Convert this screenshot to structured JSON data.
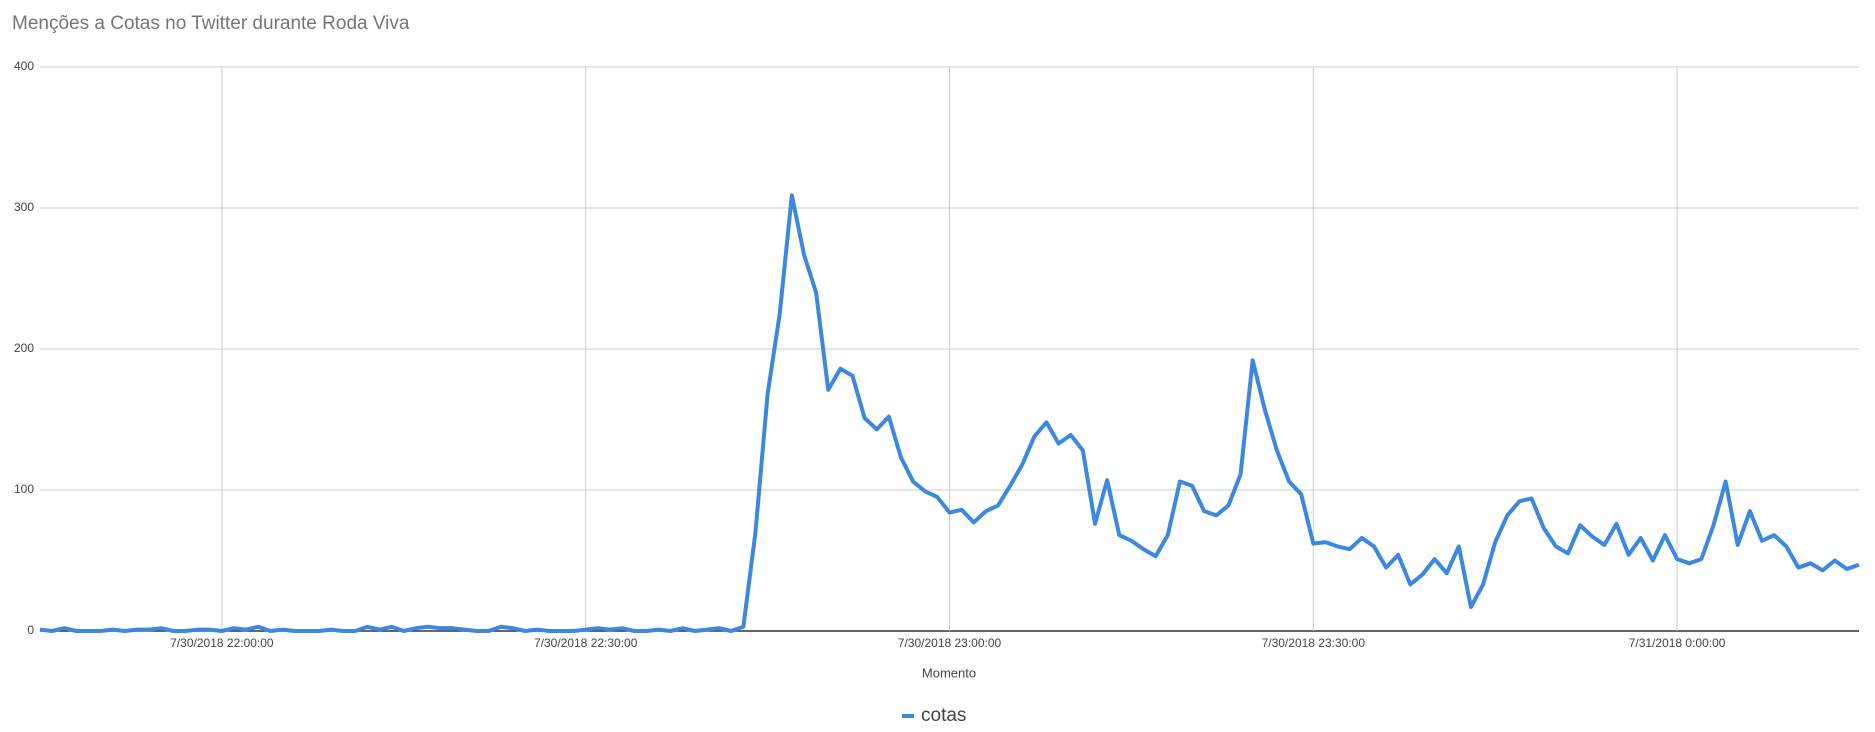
{
  "chart_data": {
    "type": "line",
    "title": "Menções a Cotas no Twitter durante Roda Viva",
    "x_label": "Momento",
    "x": [
      "7/30/2018 21:45:00",
      "7/30/2018 21:46:00",
      "7/30/2018 21:47:00",
      "7/30/2018 21:48:00",
      "7/30/2018 21:49:00",
      "7/30/2018 21:50:00",
      "7/30/2018 21:51:00",
      "7/30/2018 21:52:00",
      "7/30/2018 21:53:00",
      "7/30/2018 21:54:00",
      "7/30/2018 21:55:00",
      "7/30/2018 21:56:00",
      "7/30/2018 21:57:00",
      "7/30/2018 21:58:00",
      "7/30/2018 21:59:00",
      "7/30/2018 22:00:00",
      "7/30/2018 22:01:00",
      "7/30/2018 22:02:00",
      "7/30/2018 22:03:00",
      "7/30/2018 22:04:00",
      "7/30/2018 22:05:00",
      "7/30/2018 22:06:00",
      "7/30/2018 22:07:00",
      "7/30/2018 22:08:00",
      "7/30/2018 22:09:00",
      "7/30/2018 22:10:00",
      "7/30/2018 22:11:00",
      "7/30/2018 22:12:00",
      "7/30/2018 22:13:00",
      "7/30/2018 22:14:00",
      "7/30/2018 22:15:00",
      "7/30/2018 22:16:00",
      "7/30/2018 22:17:00",
      "7/30/2018 22:18:00",
      "7/30/2018 22:19:00",
      "7/30/2018 22:20:00",
      "7/30/2018 22:21:00",
      "7/30/2018 22:22:00",
      "7/30/2018 22:23:00",
      "7/30/2018 22:24:00",
      "7/30/2018 22:25:00",
      "7/30/2018 22:26:00",
      "7/30/2018 22:27:00",
      "7/30/2018 22:28:00",
      "7/30/2018 22:29:00",
      "7/30/2018 22:30:00",
      "7/30/2018 22:31:00",
      "7/30/2018 22:32:00",
      "7/30/2018 22:33:00",
      "7/30/2018 22:34:00",
      "7/30/2018 22:35:00",
      "7/30/2018 22:36:00",
      "7/30/2018 22:37:00",
      "7/30/2018 22:38:00",
      "7/30/2018 22:39:00",
      "7/30/2018 22:40:00",
      "7/30/2018 22:41:00",
      "7/30/2018 22:42:00",
      "7/30/2018 22:43:00",
      "7/30/2018 22:44:00",
      "7/30/2018 22:45:00",
      "7/30/2018 22:46:00",
      "7/30/2018 22:47:00",
      "7/30/2018 22:48:00",
      "7/30/2018 22:49:00",
      "7/30/2018 22:50:00",
      "7/30/2018 22:51:00",
      "7/30/2018 22:52:00",
      "7/30/2018 22:53:00",
      "7/30/2018 22:54:00",
      "7/30/2018 22:55:00",
      "7/30/2018 22:56:00",
      "7/30/2018 22:57:00",
      "7/30/2018 22:58:00",
      "7/30/2018 22:59:00",
      "7/30/2018 23:00:00",
      "7/30/2018 23:01:00",
      "7/30/2018 23:02:00",
      "7/30/2018 23:03:00",
      "7/30/2018 23:04:00",
      "7/30/2018 23:05:00",
      "7/30/2018 23:06:00",
      "7/30/2018 23:07:00",
      "7/30/2018 23:08:00",
      "7/30/2018 23:09:00",
      "7/30/2018 23:10:00",
      "7/30/2018 23:11:00",
      "7/30/2018 23:12:00",
      "7/30/2018 23:13:00",
      "7/30/2018 23:14:00",
      "7/30/2018 23:15:00",
      "7/30/2018 23:16:00",
      "7/30/2018 23:17:00",
      "7/30/2018 23:18:00",
      "7/30/2018 23:19:00",
      "7/30/2018 23:20:00",
      "7/30/2018 23:21:00",
      "7/30/2018 23:22:00",
      "7/30/2018 23:23:00",
      "7/30/2018 23:24:00",
      "7/30/2018 23:25:00",
      "7/30/2018 23:26:00",
      "7/30/2018 23:27:00",
      "7/30/2018 23:28:00",
      "7/30/2018 23:29:00",
      "7/30/2018 23:30:00",
      "7/30/2018 23:31:00",
      "7/30/2018 23:32:00",
      "7/30/2018 23:33:00",
      "7/30/2018 23:34:00",
      "7/30/2018 23:35:00",
      "7/30/2018 23:36:00",
      "7/30/2018 23:37:00",
      "7/30/2018 23:38:00",
      "7/30/2018 23:39:00",
      "7/30/2018 23:40:00",
      "7/30/2018 23:41:00",
      "7/30/2018 23:42:00",
      "7/30/2018 23:43:00",
      "7/30/2018 23:44:00",
      "7/30/2018 23:45:00",
      "7/30/2018 23:46:00",
      "7/30/2018 23:47:00",
      "7/30/2018 23:48:00",
      "7/30/2018 23:49:00",
      "7/30/2018 23:50:00",
      "7/30/2018 23:51:00",
      "7/30/2018 23:52:00",
      "7/30/2018 23:53:00",
      "7/30/2018 23:54:00",
      "7/30/2018 23:55:00",
      "7/30/2018 23:56:00",
      "7/30/2018 23:57:00",
      "7/30/2018 23:58:00",
      "7/30/2018 23:59:00",
      "7/31/2018 0:00:00",
      "7/31/2018 0:01:00",
      "7/31/2018 0:02:00",
      "7/31/2018 0:03:00",
      "7/31/2018 0:04:00",
      "7/31/2018 0:05:00",
      "7/31/2018 0:06:00",
      "7/31/2018 0:07:00",
      "7/31/2018 0:08:00",
      "7/31/2018 0:09:00",
      "7/31/2018 0:10:00",
      "7/31/2018 0:11:00",
      "7/31/2018 0:12:00",
      "7/31/2018 0:13:00",
      "7/31/2018 0:14:00",
      "7/31/2018 0:15:00"
    ],
    "series": [
      {
        "name": "cotas",
        "color": "#3c87e0",
        "values": [
          1,
          0,
          2,
          0,
          0,
          0,
          1,
          0,
          1,
          1,
          2,
          0,
          0,
          1,
          1,
          0,
          2,
          1,
          3,
          0,
          1,
          0,
          0,
          0,
          1,
          0,
          0,
          3,
          1,
          3,
          0,
          2,
          3,
          2,
          2,
          1,
          0,
          0,
          3,
          2,
          0,
          1,
          0,
          0,
          0,
          1,
          2,
          1,
          2,
          0,
          0,
          1,
          0,
          2,
          0,
          1,
          2,
          0,
          3,
          70,
          168,
          225,
          309,
          267,
          240,
          171,
          186,
          181,
          151,
          143,
          152,
          123,
          106,
          99,
          95,
          84,
          86,
          77,
          85,
          89,
          103,
          118,
          138,
          148,
          133,
          139,
          128,
          76,
          107,
          68,
          64,
          58,
          53,
          68,
          106,
          103,
          85,
          82,
          89,
          111,
          192,
          157,
          128,
          106,
          97,
          62,
          63,
          60,
          58,
          66,
          60,
          45,
          54,
          33,
          40,
          51,
          41,
          60,
          17,
          33,
          63,
          82,
          92,
          94,
          73,
          60,
          55,
          75,
          67,
          61,
          76,
          54,
          66,
          50,
          68,
          51,
          48,
          51,
          75,
          106,
          61,
          85,
          64,
          68,
          60,
          45,
          48,
          43,
          50,
          44,
          47
        ]
      }
    ],
    "xlim": [
      "7/30/2018 21:45:00",
      "7/31/2018 0:15:00"
    ],
    "xticks": [
      "7/30/2018 22:00:00",
      "7/30/2018 22:30:00",
      "7/30/2018 23:00:00",
      "7/30/2018 23:30:00",
      "7/31/2018 0:00:00"
    ],
    "ylim": [
      0,
      400
    ],
    "yticks": [
      0,
      100,
      200,
      300,
      400
    ],
    "grid": true,
    "legend": "bottom"
  }
}
